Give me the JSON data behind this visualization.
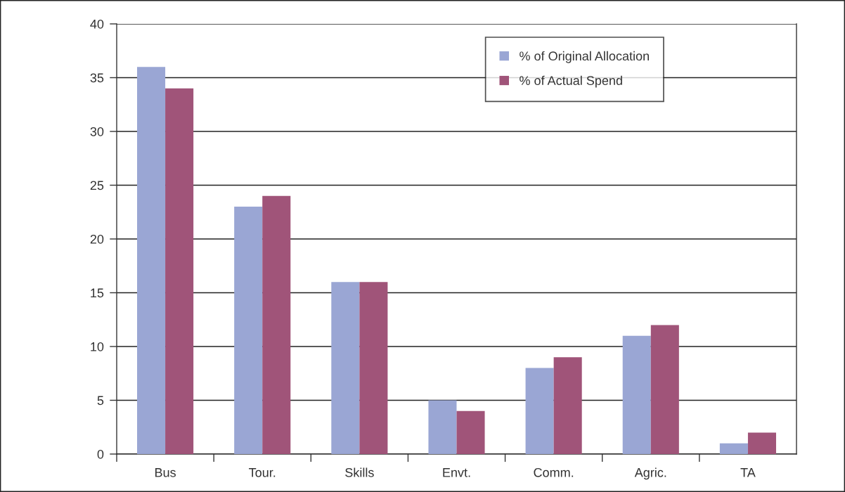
{
  "chart_data": {
    "type": "bar",
    "categories": [
      "Bus",
      "Tour.",
      "Skills",
      "Envt.",
      "Comm.",
      "Agric.",
      "TA"
    ],
    "series": [
      {
        "name": "% of Original Allocation",
        "color": "#9aa6d4",
        "values": [
          36,
          23,
          16,
          5,
          8,
          11,
          1
        ]
      },
      {
        "name": "% of Actual Spend",
        "color": "#a05479",
        "values": [
          34,
          24,
          16,
          4,
          9,
          12,
          2
        ]
      }
    ],
    "ylim": [
      0,
      40
    ],
    "yticks": [
      0,
      5,
      10,
      15,
      20,
      25,
      30,
      35,
      40
    ],
    "grid": "y",
    "legend": "top right"
  }
}
